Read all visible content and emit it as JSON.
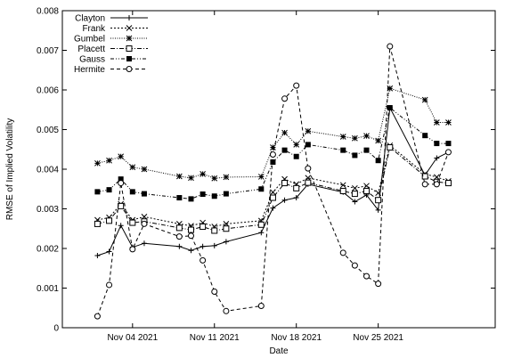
{
  "chart_data": {
    "type": "line",
    "title": "",
    "xlabel": "Date",
    "ylabel": "RMSE of Implied Volatility",
    "ylim": [
      0,
      0.008
    ],
    "xlim": [
      "2021-10-29",
      "2021-12-05"
    ],
    "yticks": [
      "0",
      "0.001",
      "0.002",
      "0.003",
      "0.004",
      "0.005",
      "0.006",
      "0.007",
      "0.008"
    ],
    "xticks": [
      {
        "date": "2021-11-04",
        "label": "Nov 04 2021"
      },
      {
        "date": "2021-11-11",
        "label": "Nov 11 2021"
      },
      {
        "date": "2021-11-18",
        "label": "Nov 18 2021"
      },
      {
        "date": "2021-11-25",
        "label": "Nov 25 2021"
      }
    ],
    "grid": false,
    "legend_position": "top-left",
    "x": [
      "2021-11-01",
      "2021-11-02",
      "2021-11-03",
      "2021-11-04",
      "2021-11-05",
      "2021-11-08",
      "2021-11-09",
      "2021-11-10",
      "2021-11-11",
      "2021-11-12",
      "2021-11-15",
      "2021-11-16",
      "2021-11-17",
      "2021-11-18",
      "2021-11-19",
      "2021-11-22",
      "2021-11-23",
      "2021-11-24",
      "2021-11-25",
      "2021-11-26",
      "2021-11-29",
      "2021-11-30",
      "2021-12-01"
    ],
    "series": [
      {
        "name": "Clayton",
        "marker": "plus",
        "dash": "solid",
        "values": [
          0.00182,
          0.00192,
          0.00258,
          0.00203,
          0.00213,
          0.00205,
          0.00195,
          0.00205,
          0.00207,
          0.00217,
          0.0024,
          0.00302,
          0.00322,
          0.00328,
          0.00362,
          0.00342,
          0.00318,
          0.00335,
          0.00297,
          0.00555,
          0.00385,
          0.00428,
          0.00443
        ]
      },
      {
        "name": "Frank",
        "marker": "cross",
        "dash": "dotted",
        "values": [
          0.00272,
          0.00278,
          0.00312,
          0.00272,
          0.0028,
          0.00262,
          0.00257,
          0.00265,
          0.00255,
          0.00262,
          0.0027,
          0.00342,
          0.00375,
          0.00362,
          0.00378,
          0.0036,
          0.00352,
          0.00358,
          0.0034,
          0.0046,
          0.00388,
          0.0038,
          0.0037
        ]
      },
      {
        "name": "Gumbel",
        "marker": "star",
        "dash": "finedot",
        "values": [
          0.00415,
          0.00422,
          0.00432,
          0.00405,
          0.004,
          0.00382,
          0.00378,
          0.00388,
          0.00377,
          0.0038,
          0.00381,
          0.00455,
          0.00492,
          0.00462,
          0.00496,
          0.00482,
          0.00478,
          0.00484,
          0.00472,
          0.00604,
          0.00575,
          0.00518,
          0.00518
        ]
      },
      {
        "name": "Placett",
        "marker": "square-open",
        "dash": "dashdot",
        "values": [
          0.00262,
          0.0027,
          0.00307,
          0.00265,
          0.00268,
          0.00252,
          0.00247,
          0.00255,
          0.00245,
          0.0025,
          0.0026,
          0.00328,
          0.00365,
          0.00352,
          0.00366,
          0.00345,
          0.00338,
          0.00345,
          0.00322,
          0.00455,
          0.00382,
          0.00368,
          0.00365
        ]
      },
      {
        "name": "Gauss",
        "marker": "square-filled",
        "dash": "dashdotdot",
        "values": [
          0.00343,
          0.00348,
          0.00375,
          0.00343,
          0.00338,
          0.00328,
          0.00325,
          0.00337,
          0.00332,
          0.00338,
          0.0035,
          0.00418,
          0.00448,
          0.00432,
          0.00462,
          0.00448,
          0.00435,
          0.00448,
          0.00422,
          0.00555,
          0.00485,
          0.00465,
          0.00465
        ]
      },
      {
        "name": "Hermite",
        "marker": "circle-open",
        "dash": "dashed",
        "values": [
          0.00029,
          0.00108,
          0.00365,
          0.00198,
          0.00262,
          0.0023,
          0.00232,
          0.0017,
          0.00091,
          0.00042,
          0.00055,
          0.00437,
          0.00578,
          0.00611,
          0.00402,
          0.00189,
          0.00157,
          0.0013,
          0.00111,
          0.0071,
          0.00362,
          0.00362,
          0.00443
        ]
      }
    ]
  }
}
